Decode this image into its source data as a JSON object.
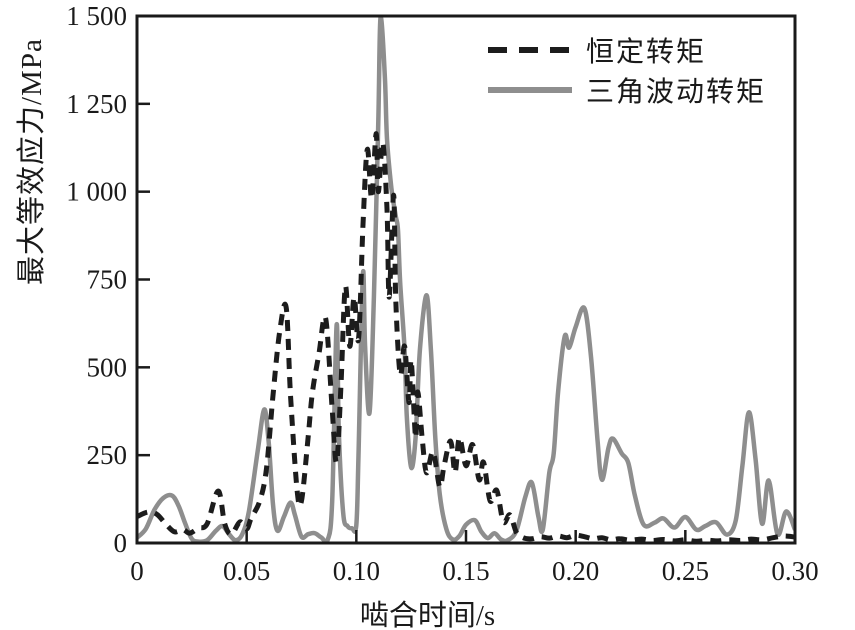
{
  "figure": {
    "background": "#ffffff",
    "frame_color": "#1a1a1a",
    "text_color": "#1a1a1a"
  },
  "legend": {
    "items": [
      {
        "label": "恒定转矩",
        "style": "dashed",
        "color": "#1c1c1c"
      },
      {
        "label": "三角波动转矩",
        "style": "solid",
        "color": "#8e8e8e"
      }
    ]
  },
  "chart_data": {
    "type": "line",
    "title": "",
    "xlabel": "啮合时间/s",
    "ylabel": "最大等效应力/MPa",
    "xlim": [
      0,
      0.3
    ],
    "ylim": [
      0,
      1500
    ],
    "grid": false,
    "legend_position": "upper-right",
    "x_ticks": [
      0,
      0.05,
      0.1,
      0.15,
      0.2,
      0.25,
      0.3
    ],
    "x_tick_labels": [
      "0",
      "0.05",
      "0.10",
      "0.15",
      "0.20",
      "0.25",
      "0.30"
    ],
    "y_ticks": [
      0,
      250,
      500,
      750,
      1000,
      1250,
      1500
    ],
    "y_tick_labels": [
      "0",
      "250",
      "500",
      "750",
      "1 000",
      "1 250",
      "1 500"
    ],
    "series": [
      {
        "name": "恒定转矩",
        "style": "dashed",
        "color": "#1c1c1c",
        "points": [
          [
            0.0,
            75
          ],
          [
            0.005,
            88
          ],
          [
            0.009,
            82
          ],
          [
            0.013,
            55
          ],
          [
            0.017,
            32
          ],
          [
            0.021,
            38
          ],
          [
            0.024,
            28
          ],
          [
            0.028,
            42
          ],
          [
            0.032,
            55
          ],
          [
            0.037,
            148
          ],
          [
            0.04,
            55
          ],
          [
            0.043,
            25
          ],
          [
            0.047,
            60
          ],
          [
            0.05,
            40
          ],
          [
            0.052,
            70
          ],
          [
            0.056,
            120
          ],
          [
            0.059,
            210
          ],
          [
            0.062,
            420
          ],
          [
            0.065,
            600
          ],
          [
            0.068,
            672
          ],
          [
            0.07,
            420
          ],
          [
            0.073,
            150
          ],
          [
            0.075,
            120
          ],
          [
            0.078,
            300
          ],
          [
            0.08,
            430
          ],
          [
            0.083,
            540
          ],
          [
            0.086,
            640
          ],
          [
            0.089,
            380
          ],
          [
            0.091,
            230
          ],
          [
            0.093,
            450
          ],
          [
            0.095,
            730
          ],
          [
            0.097,
            560
          ],
          [
            0.099,
            700
          ],
          [
            0.101,
            580
          ],
          [
            0.103,
            900
          ],
          [
            0.105,
            1120
          ],
          [
            0.107,
            980
          ],
          [
            0.109,
            1165
          ],
          [
            0.11,
            1000
          ],
          [
            0.112,
            1140
          ],
          [
            0.114,
            950
          ],
          [
            0.115,
            700
          ],
          [
            0.117,
            990
          ],
          [
            0.118,
            690
          ],
          [
            0.12,
            480
          ],
          [
            0.122,
            560
          ],
          [
            0.124,
            400
          ],
          [
            0.125,
            520
          ],
          [
            0.127,
            300
          ],
          [
            0.128,
            430
          ],
          [
            0.13,
            300
          ],
          [
            0.132,
            200
          ],
          [
            0.135,
            260
          ],
          [
            0.138,
            160
          ],
          [
            0.14,
            220
          ],
          [
            0.143,
            290
          ],
          [
            0.145,
            200
          ],
          [
            0.147,
            300
          ],
          [
            0.15,
            220
          ],
          [
            0.153,
            280
          ],
          [
            0.156,
            180
          ],
          [
            0.158,
            230
          ],
          [
            0.161,
            120
          ],
          [
            0.164,
            150
          ],
          [
            0.167,
            60
          ],
          [
            0.17,
            80
          ],
          [
            0.173,
            30
          ],
          [
            0.176,
            15
          ],
          [
            0.18,
            12
          ],
          [
            0.184,
            18
          ],
          [
            0.188,
            14
          ],
          [
            0.192,
            20
          ],
          [
            0.196,
            15
          ],
          [
            0.2,
            22
          ],
          [
            0.204,
            18
          ],
          [
            0.208,
            12
          ],
          [
            0.212,
            15
          ],
          [
            0.216,
            9
          ],
          [
            0.22,
            12
          ],
          [
            0.225,
            8
          ],
          [
            0.23,
            11
          ],
          [
            0.235,
            7
          ],
          [
            0.24,
            10
          ],
          [
            0.245,
            6
          ],
          [
            0.25,
            9
          ],
          [
            0.255,
            5
          ],
          [
            0.26,
            8
          ],
          [
            0.265,
            6
          ],
          [
            0.27,
            9
          ],
          [
            0.275,
            7
          ],
          [
            0.28,
            11
          ],
          [
            0.285,
            9
          ],
          [
            0.29,
            15
          ],
          [
            0.295,
            20
          ],
          [
            0.3,
            17
          ]
        ]
      },
      {
        "name": "三角波动转矩",
        "style": "solid",
        "color": "#8e8e8e",
        "points": [
          [
            0.0,
            15
          ],
          [
            0.004,
            40
          ],
          [
            0.008,
            95
          ],
          [
            0.012,
            128
          ],
          [
            0.016,
            135
          ],
          [
            0.019,
            105
          ],
          [
            0.022,
            55
          ],
          [
            0.025,
            12
          ],
          [
            0.028,
            4
          ],
          [
            0.032,
            8
          ],
          [
            0.036,
            35
          ],
          [
            0.039,
            48
          ],
          [
            0.042,
            25
          ],
          [
            0.045,
            8
          ],
          [
            0.048,
            25
          ],
          [
            0.051,
            90
          ],
          [
            0.055,
            260
          ],
          [
            0.058,
            380
          ],
          [
            0.06,
            290
          ],
          [
            0.062,
            110
          ],
          [
            0.064,
            35
          ],
          [
            0.067,
            75
          ],
          [
            0.07,
            115
          ],
          [
            0.072,
            80
          ],
          [
            0.075,
            18
          ],
          [
            0.078,
            25
          ],
          [
            0.081,
            28
          ],
          [
            0.084,
            16
          ],
          [
            0.087,
            10
          ],
          [
            0.089,
            120
          ],
          [
            0.091,
            620
          ],
          [
            0.092,
            320
          ],
          [
            0.094,
            85
          ],
          [
            0.096,
            48
          ],
          [
            0.098,
            42
          ],
          [
            0.1,
            50
          ],
          [
            0.101,
            250
          ],
          [
            0.103,
            765
          ],
          [
            0.104,
            560
          ],
          [
            0.106,
            370
          ],
          [
            0.108,
            700
          ],
          [
            0.11,
            1200
          ],
          [
            0.111,
            1505
          ],
          [
            0.113,
            1330
          ],
          [
            0.114,
            1150
          ],
          [
            0.116,
            1010
          ],
          [
            0.118,
            930
          ],
          [
            0.119,
            890
          ],
          [
            0.12,
            740
          ],
          [
            0.122,
            550
          ],
          [
            0.123,
            360
          ],
          [
            0.125,
            215
          ],
          [
            0.127,
            300
          ],
          [
            0.129,
            550
          ],
          [
            0.132,
            705
          ],
          [
            0.134,
            550
          ],
          [
            0.136,
            300
          ],
          [
            0.138,
            140
          ],
          [
            0.141,
            40
          ],
          [
            0.144,
            10
          ],
          [
            0.147,
            20
          ],
          [
            0.15,
            52
          ],
          [
            0.154,
            65
          ],
          [
            0.157,
            32
          ],
          [
            0.16,
            14
          ],
          [
            0.163,
            28
          ],
          [
            0.166,
            10
          ],
          [
            0.169,
            8
          ],
          [
            0.173,
            35
          ],
          [
            0.177,
            130
          ],
          [
            0.18,
            172
          ],
          [
            0.183,
            75
          ],
          [
            0.185,
            38
          ],
          [
            0.188,
            200
          ],
          [
            0.19,
            255
          ],
          [
            0.192,
            430
          ],
          [
            0.195,
            588
          ],
          [
            0.197,
            556
          ],
          [
            0.2,
            615
          ],
          [
            0.204,
            668
          ],
          [
            0.207,
            530
          ],
          [
            0.21,
            290
          ],
          [
            0.212,
            180
          ],
          [
            0.215,
            272
          ],
          [
            0.217,
            297
          ],
          [
            0.221,
            255
          ],
          [
            0.224,
            228
          ],
          [
            0.227,
            135
          ],
          [
            0.231,
            52
          ],
          [
            0.236,
            58
          ],
          [
            0.24,
            70
          ],
          [
            0.245,
            44
          ],
          [
            0.25,
            74
          ],
          [
            0.255,
            38
          ],
          [
            0.259,
            48
          ],
          [
            0.264,
            59
          ],
          [
            0.269,
            24
          ],
          [
            0.273,
            65
          ],
          [
            0.276,
            220
          ],
          [
            0.279,
            372
          ],
          [
            0.282,
            240
          ],
          [
            0.285,
            55
          ],
          [
            0.288,
            178
          ],
          [
            0.292,
            25
          ],
          [
            0.296,
            90
          ],
          [
            0.3,
            38
          ]
        ]
      }
    ]
  }
}
